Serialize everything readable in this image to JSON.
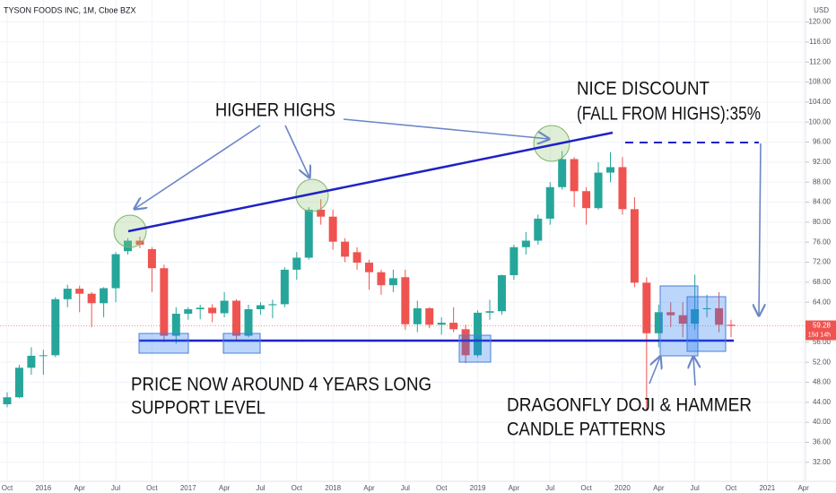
{
  "chart_data": {
    "type": "candlestick",
    "title": "TYSON FOODS INC, 1M, Cboe BZX",
    "axis_unit": "USD",
    "countdown": "15d 14h",
    "up_color": "#26a69a",
    "down_color": "#ef5350",
    "grid": true,
    "x": [
      "2015-10",
      "2015-11",
      "2015-12",
      "2016-01",
      "2016-02",
      "2016-03",
      "2016-04",
      "2016-05",
      "2016-06",
      "2016-07",
      "2016-08",
      "2016-09",
      "2016-10",
      "2016-11",
      "2016-12",
      "2017-01",
      "2017-02",
      "2017-03",
      "2017-04",
      "2017-05",
      "2017-06",
      "2017-07",
      "2017-08",
      "2017-09",
      "2017-10",
      "2017-11",
      "2017-12",
      "2018-01",
      "2018-02",
      "2018-03",
      "2018-04",
      "2018-05",
      "2018-06",
      "2018-07",
      "2018-08",
      "2018-09",
      "2018-10",
      "2018-11",
      "2018-12",
      "2019-01",
      "2019-02",
      "2019-03",
      "2019-04",
      "2019-05",
      "2019-06",
      "2019-07",
      "2019-08",
      "2019-09",
      "2019-10",
      "2019-11",
      "2019-12",
      "2020-01",
      "2020-02",
      "2020-03",
      "2020-04",
      "2020-05",
      "2020-06",
      "2020-07",
      "2020-08",
      "2020-09",
      "2020-10"
    ],
    "open": [
      43.6,
      45,
      50.9,
      53.3,
      53.4,
      64.6,
      66.7,
      65.7,
      63.8,
      66.8,
      74.2,
      76.3,
      74.6,
      70.8,
      57.3,
      61.7,
      62.6,
      62.9,
      61.8,
      64.3,
      57.3,
      62.6,
      63.4,
      63.6,
      70.5,
      72.9,
      82.5,
      81.1,
      76.1,
      74,
      71.9,
      70,
      67.4,
      69,
      59.6,
      62.8,
      59.5,
      59.9,
      58.6,
      53.4,
      61.9,
      62.2,
      69.4,
      75,
      76.3,
      80.7,
      87,
      92.6,
      86.2,
      82.8,
      89.9,
      91,
      82.6,
      67.9,
      57.8,
      62,
      61.4,
      59.7,
      62.6,
      62.8,
      59.5
    ],
    "high": [
      46,
      51.5,
      55,
      54.5,
      65,
      67.5,
      67.3,
      66,
      67,
      74,
      76.8,
      77.1,
      75,
      71.5,
      63,
      63,
      63.5,
      63.6,
      66,
      64.6,
      63.5,
      64,
      64.5,
      71,
      74,
      83,
      84.6,
      82.5,
      76.8,
      75,
      72.5,
      70.5,
      70.5,
      70.5,
      64.3,
      63,
      61,
      63,
      59.5,
      62.4,
      64.5,
      69.5,
      75.5,
      78,
      81.5,
      88,
      94.2,
      93,
      87,
      92,
      94,
      93,
      85,
      69,
      63.5,
      64,
      64,
      69.5,
      65.5,
      66,
      60.5
    ],
    "low": [
      43,
      44.8,
      49.5,
      49.5,
      53,
      63,
      62,
      59,
      61,
      64,
      73.5,
      74.8,
      66,
      56,
      55.7,
      60.5,
      60.6,
      60,
      61,
      56.3,
      57,
      61.5,
      60.8,
      63,
      68.5,
      72.5,
      79.5,
      74.5,
      72,
      70.5,
      66.5,
      65.5,
      66,
      58.5,
      58,
      58.8,
      57.5,
      58,
      51.8,
      53,
      60.5,
      61.5,
      68.5,
      73.5,
      75.5,
      79.5,
      86.5,
      83,
      79.5,
      82.5,
      88,
      81.5,
      67,
      42.6,
      55,
      59,
      57,
      58.5,
      61,
      58,
      57
    ],
    "close": [
      45,
      50.9,
      53.3,
      53.4,
      64.6,
      66.7,
      65.7,
      63.8,
      66.8,
      73.6,
      76.3,
      75.5,
      70.8,
      57.3,
      61.7,
      62.6,
      62.9,
      61.8,
      64.3,
      57.3,
      62.6,
      63.4,
      63.6,
      70.5,
      72.9,
      82.5,
      81.1,
      76.1,
      73.1,
      71.9,
      70,
      67.4,
      68.8,
      59.6,
      62.8,
      59.5,
      59.9,
      58.6,
      53.4,
      61.9,
      62.2,
      69.4,
      75,
      76.3,
      80.7,
      87,
      92.6,
      86.2,
      82.8,
      89.9,
      91,
      82.6,
      67.9,
      57.8,
      62,
      61.4,
      59.7,
      62.6,
      62.8,
      59.5,
      59.28
    ],
    "ylim": [
      28.2,
      124.4
    ],
    "yticks": [
      {
        "value": 32,
        "label": "32.00"
      },
      {
        "value": 36,
        "label": "36.00"
      },
      {
        "value": 40,
        "label": "40.00"
      },
      {
        "value": 44,
        "label": "44.00"
      },
      {
        "value": 48,
        "label": "48.00"
      },
      {
        "value": 52,
        "label": "52.00"
      },
      {
        "value": 56,
        "label": "56.00"
      },
      {
        "value": 64,
        "label": "64.00"
      },
      {
        "value": 68,
        "label": "68.00"
      },
      {
        "value": 72,
        "label": "72.00"
      },
      {
        "value": 76,
        "label": "76.00"
      },
      {
        "value": 80,
        "label": "80.00"
      },
      {
        "value": 84,
        "label": "84.00"
      },
      {
        "value": 88,
        "label": "88.00"
      },
      {
        "value": 92,
        "label": "92.00"
      },
      {
        "value": 96,
        "label": "96.00"
      },
      {
        "value": 100,
        "label": "100.00"
      },
      {
        "value": 104,
        "label": "104.00"
      },
      {
        "value": 108,
        "label": "108.00"
      },
      {
        "value": 112,
        "label": "112.00"
      },
      {
        "value": 116,
        "label": "116.00"
      },
      {
        "value": 120,
        "label": "120.00"
      }
    ],
    "xticks": [
      {
        "value": "2015-10",
        "label": "Oct"
      },
      {
        "value": "2016-01",
        "label": "2016"
      },
      {
        "value": "2016-04",
        "label": "Apr"
      },
      {
        "value": "2016-07",
        "label": "Jul"
      },
      {
        "value": "2016-10",
        "label": "Oct"
      },
      {
        "value": "2017-01",
        "label": "2017"
      },
      {
        "value": "2017-04",
        "label": "Apr"
      },
      {
        "value": "2017-07",
        "label": "Jul"
      },
      {
        "value": "2017-10",
        "label": "Oct"
      },
      {
        "value": "2018-01",
        "label": "2018"
      },
      {
        "value": "2018-04",
        "label": "Apr"
      },
      {
        "value": "2018-07",
        "label": "Jul"
      },
      {
        "value": "2018-10",
        "label": "Oct"
      },
      {
        "value": "2019-01",
        "label": "2019"
      },
      {
        "value": "2019-04",
        "label": "Apr"
      },
      {
        "value": "2019-07",
        "label": "Jul"
      },
      {
        "value": "2019-10",
        "label": "Oct"
      },
      {
        "value": "2020-01",
        "label": "2020"
      },
      {
        "value": "2020-04",
        "label": "Apr"
      },
      {
        "value": "2020-07",
        "label": "Jul"
      },
      {
        "value": "2020-10",
        "label": "Oct"
      },
      {
        "value": "2021-01",
        "label": "2021"
      },
      {
        "value": "2021-04",
        "label": "Apr"
      }
    ],
    "annotations": [
      "HIGHER HIGHS",
      "NICE DISCOUNT",
      "(FALL FROM HIGHS):35%",
      "PRICE NOW AROUND 4 YEARS LONG",
      "SUPPORT LEVEL",
      "DRAGONFLY DOJI & HAMMER",
      "CANDLE PATTERNS"
    ]
  }
}
